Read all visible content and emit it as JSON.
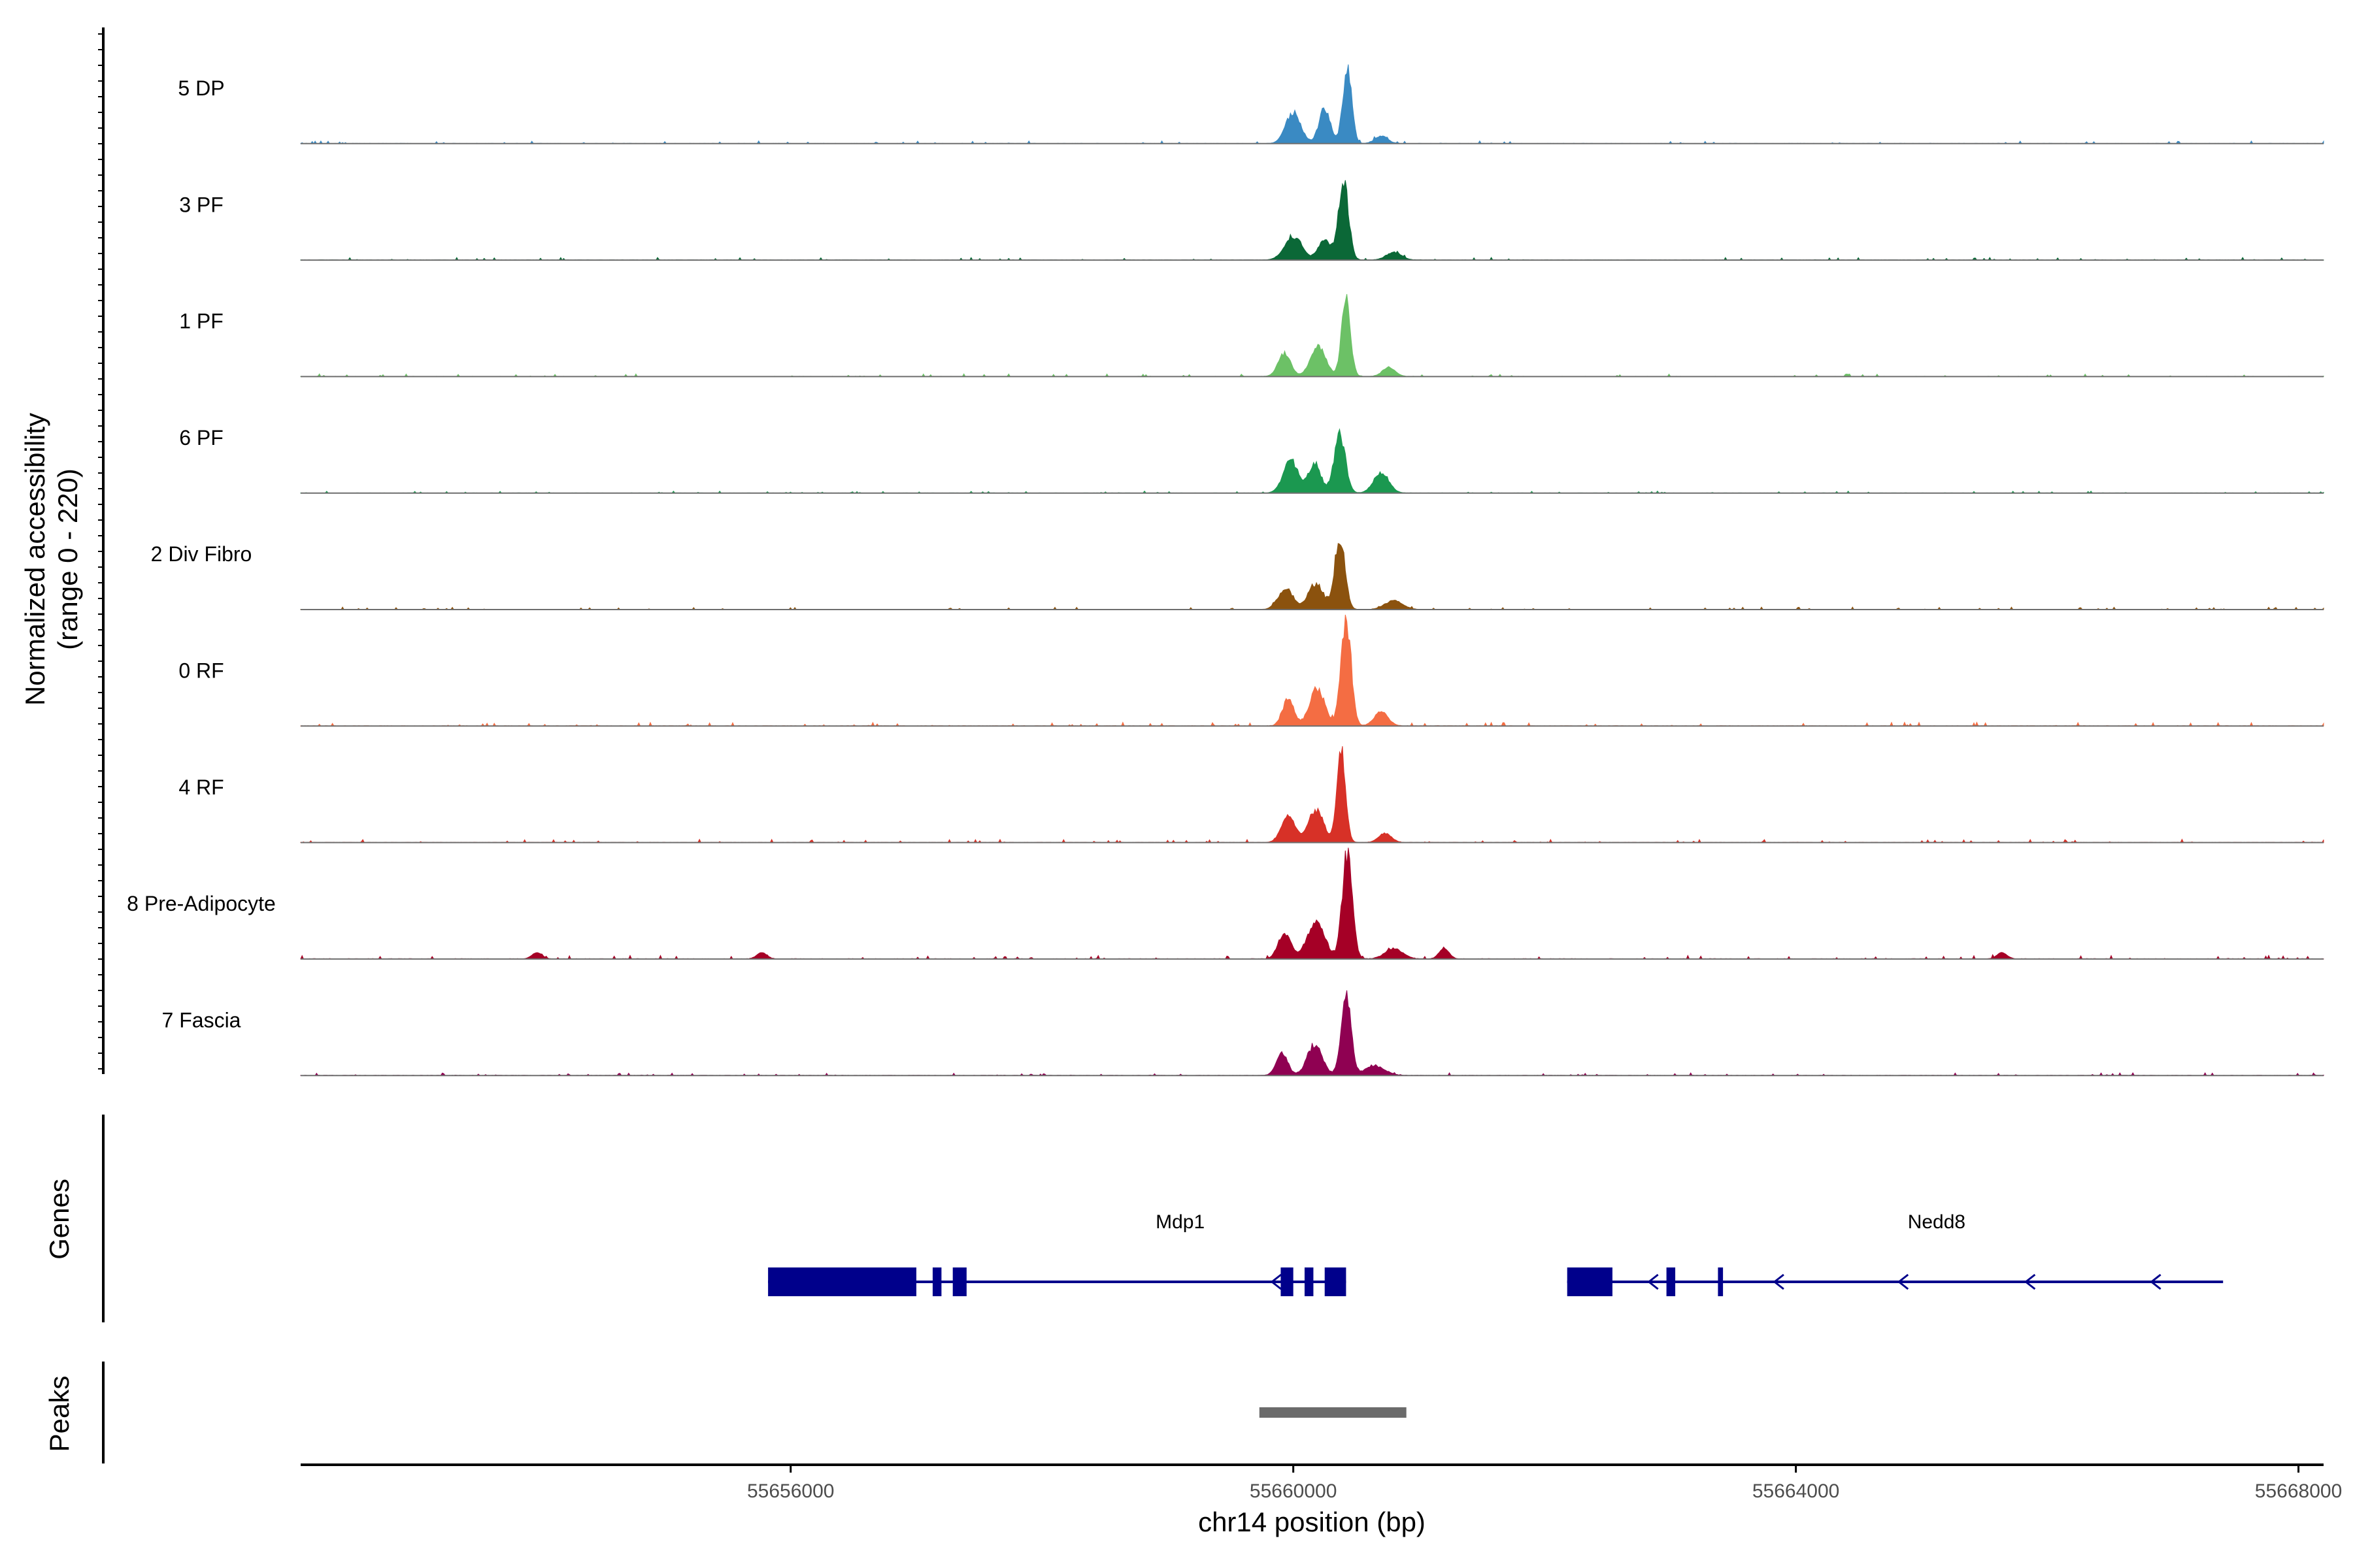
{
  "chart_data": {
    "type": "area",
    "title": "",
    "ylabel_line1": "Normalized accessibility",
    "ylabel_line2": "(range 0 - 220)",
    "ylim": [
      0,
      220
    ],
    "xlabel": "chr14 position (bp)",
    "xlim": [
      55652100,
      55668200
    ],
    "xticks": [
      55656000,
      55660000,
      55664000,
      55668000
    ],
    "xtick_labels": [
      "55656000",
      "55660000",
      "55664000",
      "55668000"
    ],
    "genes_label": "Genes",
    "peaks_label": "Peaks",
    "tracks": [
      {
        "name": "5 DP",
        "color": "#3A8AC3",
        "peak_scale": 1.0,
        "bumps": [
          [
            55660430,
            35,
            1.0
          ],
          [
            55660250,
            45,
            0.45
          ],
          [
            55660000,
            60,
            0.4
          ],
          [
            55660700,
            50,
            0.1
          ]
        ]
      },
      {
        "name": "3 PF",
        "color": "#0B6837",
        "peak_scale": 1.0,
        "bumps": [
          [
            55660400,
            40,
            1.0
          ],
          [
            55660000,
            70,
            0.3
          ],
          [
            55660250,
            50,
            0.25
          ],
          [
            55660800,
            60,
            0.1
          ]
        ]
      },
      {
        "name": "1 PF",
        "color": "#6CC166",
        "peak_scale": 1.0,
        "bumps": [
          [
            55660420,
            35,
            1.0
          ],
          [
            55660200,
            60,
            0.4
          ],
          [
            55659930,
            50,
            0.3
          ],
          [
            55660760,
            50,
            0.12
          ]
        ]
      },
      {
        "name": "6 PF",
        "color": "#1B9850",
        "peak_scale": 0.75,
        "bumps": [
          [
            55660370,
            45,
            1.0
          ],
          [
            55659980,
            60,
            0.55
          ],
          [
            55660170,
            50,
            0.5
          ],
          [
            55660700,
            60,
            0.35
          ]
        ]
      },
      {
        "name": "2 Div Fibro",
        "color": "#8B520E",
        "peak_scale": 0.95,
        "bumps": [
          [
            55660370,
            40,
            1.0
          ],
          [
            55659940,
            60,
            0.28
          ],
          [
            55660180,
            60,
            0.35
          ],
          [
            55660800,
            70,
            0.12
          ]
        ]
      },
      {
        "name": "0 RF",
        "color": "#F46D43",
        "peak_scale": 1.4,
        "bumps": [
          [
            55660420,
            40,
            1.0
          ],
          [
            55660190,
            60,
            0.35
          ],
          [
            55659960,
            45,
            0.25
          ],
          [
            55660700,
            55,
            0.13
          ]
        ]
      },
      {
        "name": "4 RF",
        "color": "#D73127",
        "peak_scale": 1.2,
        "bumps": [
          [
            55660380,
            35,
            1.0
          ],
          [
            55660180,
            60,
            0.35
          ],
          [
            55659960,
            55,
            0.28
          ],
          [
            55660730,
            50,
            0.1
          ]
        ]
      },
      {
        "name": "8 Pre-Adipocyte",
        "color": "#A50026",
        "peak_scale": 1.35,
        "bumps": [
          [
            55660430,
            40,
            1.0
          ],
          [
            55660180,
            70,
            0.35
          ],
          [
            55659930,
            50,
            0.25
          ],
          [
            55660800,
            70,
            0.1
          ],
          [
            55661200,
            40,
            0.1
          ],
          [
            55653980,
            40,
            0.06
          ],
          [
            55655770,
            40,
            0.06
          ],
          [
            55665640,
            40,
            0.06
          ]
        ]
      },
      {
        "name": "7 Fascia",
        "color": "#8F0152",
        "peak_scale": 1.0,
        "bumps": [
          [
            55660420,
            40,
            1.0
          ],
          [
            55660170,
            60,
            0.4
          ],
          [
            55659910,
            45,
            0.3
          ],
          [
            55660650,
            80,
            0.12
          ]
        ]
      }
    ],
    "genes": [
      {
        "name": "Mdp1",
        "label_pos": 55659100,
        "strand": "-",
        "intron_start": 55655820,
        "intron_end": 55660420,
        "exons": [
          [
            55655820,
            55657000
          ],
          [
            55657130,
            55657200
          ],
          [
            55657290,
            55657400
          ],
          [
            55659900,
            55660000
          ],
          [
            55660090,
            55660160
          ],
          [
            55660250,
            55660420
          ]
        ],
        "arrows": [
          55659830
        ]
      },
      {
        "name": "Nedd8",
        "label_pos": 55665120,
        "strand": "-",
        "intron_start": 55662180,
        "intron_end": 55667400,
        "exons": [
          [
            55662180,
            55662540
          ],
          [
            55662970,
            55663040
          ],
          [
            55663380,
            55663420
          ]
        ],
        "arrows": [
          55662830,
          55663830,
          55664820,
          55665830,
          55666830
        ]
      }
    ],
    "peaks": [
      [
        55659730,
        55660900
      ]
    ]
  }
}
